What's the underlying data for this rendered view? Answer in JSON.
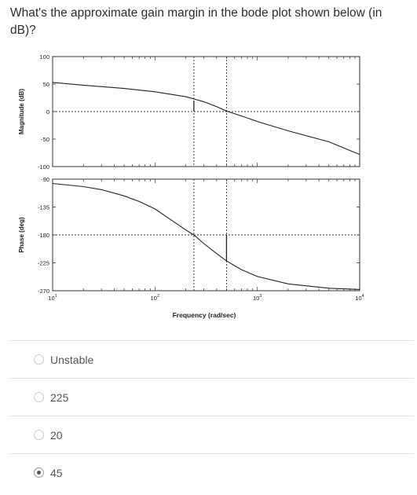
{
  "question": "What's the approximate gain margin in the bode plot shown below (in dB)?",
  "chart_data": [
    {
      "type": "line",
      "ylabel": "Magnitude (dB)",
      "ylim": [
        -100,
        100
      ],
      "yticks": [
        "100",
        "50",
        "0",
        "-50",
        "-100"
      ],
      "xlim": [
        10,
        10000
      ],
      "xscale": "log",
      "series": [
        {
          "x": [
            10,
            20,
            50,
            100,
            200,
            300,
            400,
            500,
            700,
            1000,
            2000,
            5000,
            10000
          ],
          "values": [
            53,
            48,
            42,
            36,
            27,
            18,
            9,
            1,
            -8,
            -18,
            -35,
            -55,
            -78
          ]
        }
      ],
      "reference_lines": [
        {
          "axis": "y",
          "value": 0,
          "style": "dotted"
        },
        {
          "axis": "x",
          "value": 240,
          "style": "dotted"
        },
        {
          "axis": "x",
          "value": 500,
          "style": "dotted"
        }
      ],
      "marker_segment": {
        "x": 240,
        "y_from": 0,
        "y_to": 20
      }
    },
    {
      "type": "line",
      "ylabel": "Phase (deg)",
      "xlabel": "Frequency (rad/sec)",
      "ylim": [
        -270,
        -90
      ],
      "yticks": [
        "-90",
        "-135",
        "-180",
        "-225",
        "-270"
      ],
      "xlim": [
        10,
        10000
      ],
      "xscale": "log",
      "xticks": [
        {
          "value": 10,
          "base": "10",
          "exp": "1"
        },
        {
          "value": 100,
          "base": "10",
          "exp": "2"
        },
        {
          "value": 1000,
          "base": "10",
          "exp": "3"
        },
        {
          "value": 10000,
          "base": "10",
          "exp": "4"
        }
      ],
      "series": [
        {
          "x": [
            10,
            20,
            30,
            50,
            70,
            100,
            150,
            200,
            240,
            300,
            400,
            500,
            700,
            1000,
            2000,
            5000,
            10000
          ],
          "values": [
            -97,
            -102,
            -107,
            -117,
            -126,
            -138,
            -158,
            -172,
            -180,
            -194,
            -210,
            -222,
            -236,
            -247,
            -259,
            -266,
            -268
          ]
        }
      ],
      "reference_lines": [
        {
          "axis": "y",
          "value": -180,
          "style": "dotted"
        },
        {
          "axis": "x",
          "value": 240,
          "style": "dotted"
        },
        {
          "axis": "x",
          "value": 500,
          "style": "dotted"
        }
      ],
      "marker_segment": {
        "x": 500,
        "y_from": -180,
        "y_to": -222
      }
    }
  ],
  "options": [
    {
      "label": "Unstable",
      "selected": false
    },
    {
      "label": "225",
      "selected": false
    },
    {
      "label": "20",
      "selected": false
    },
    {
      "label": "45",
      "selected": true
    }
  ]
}
